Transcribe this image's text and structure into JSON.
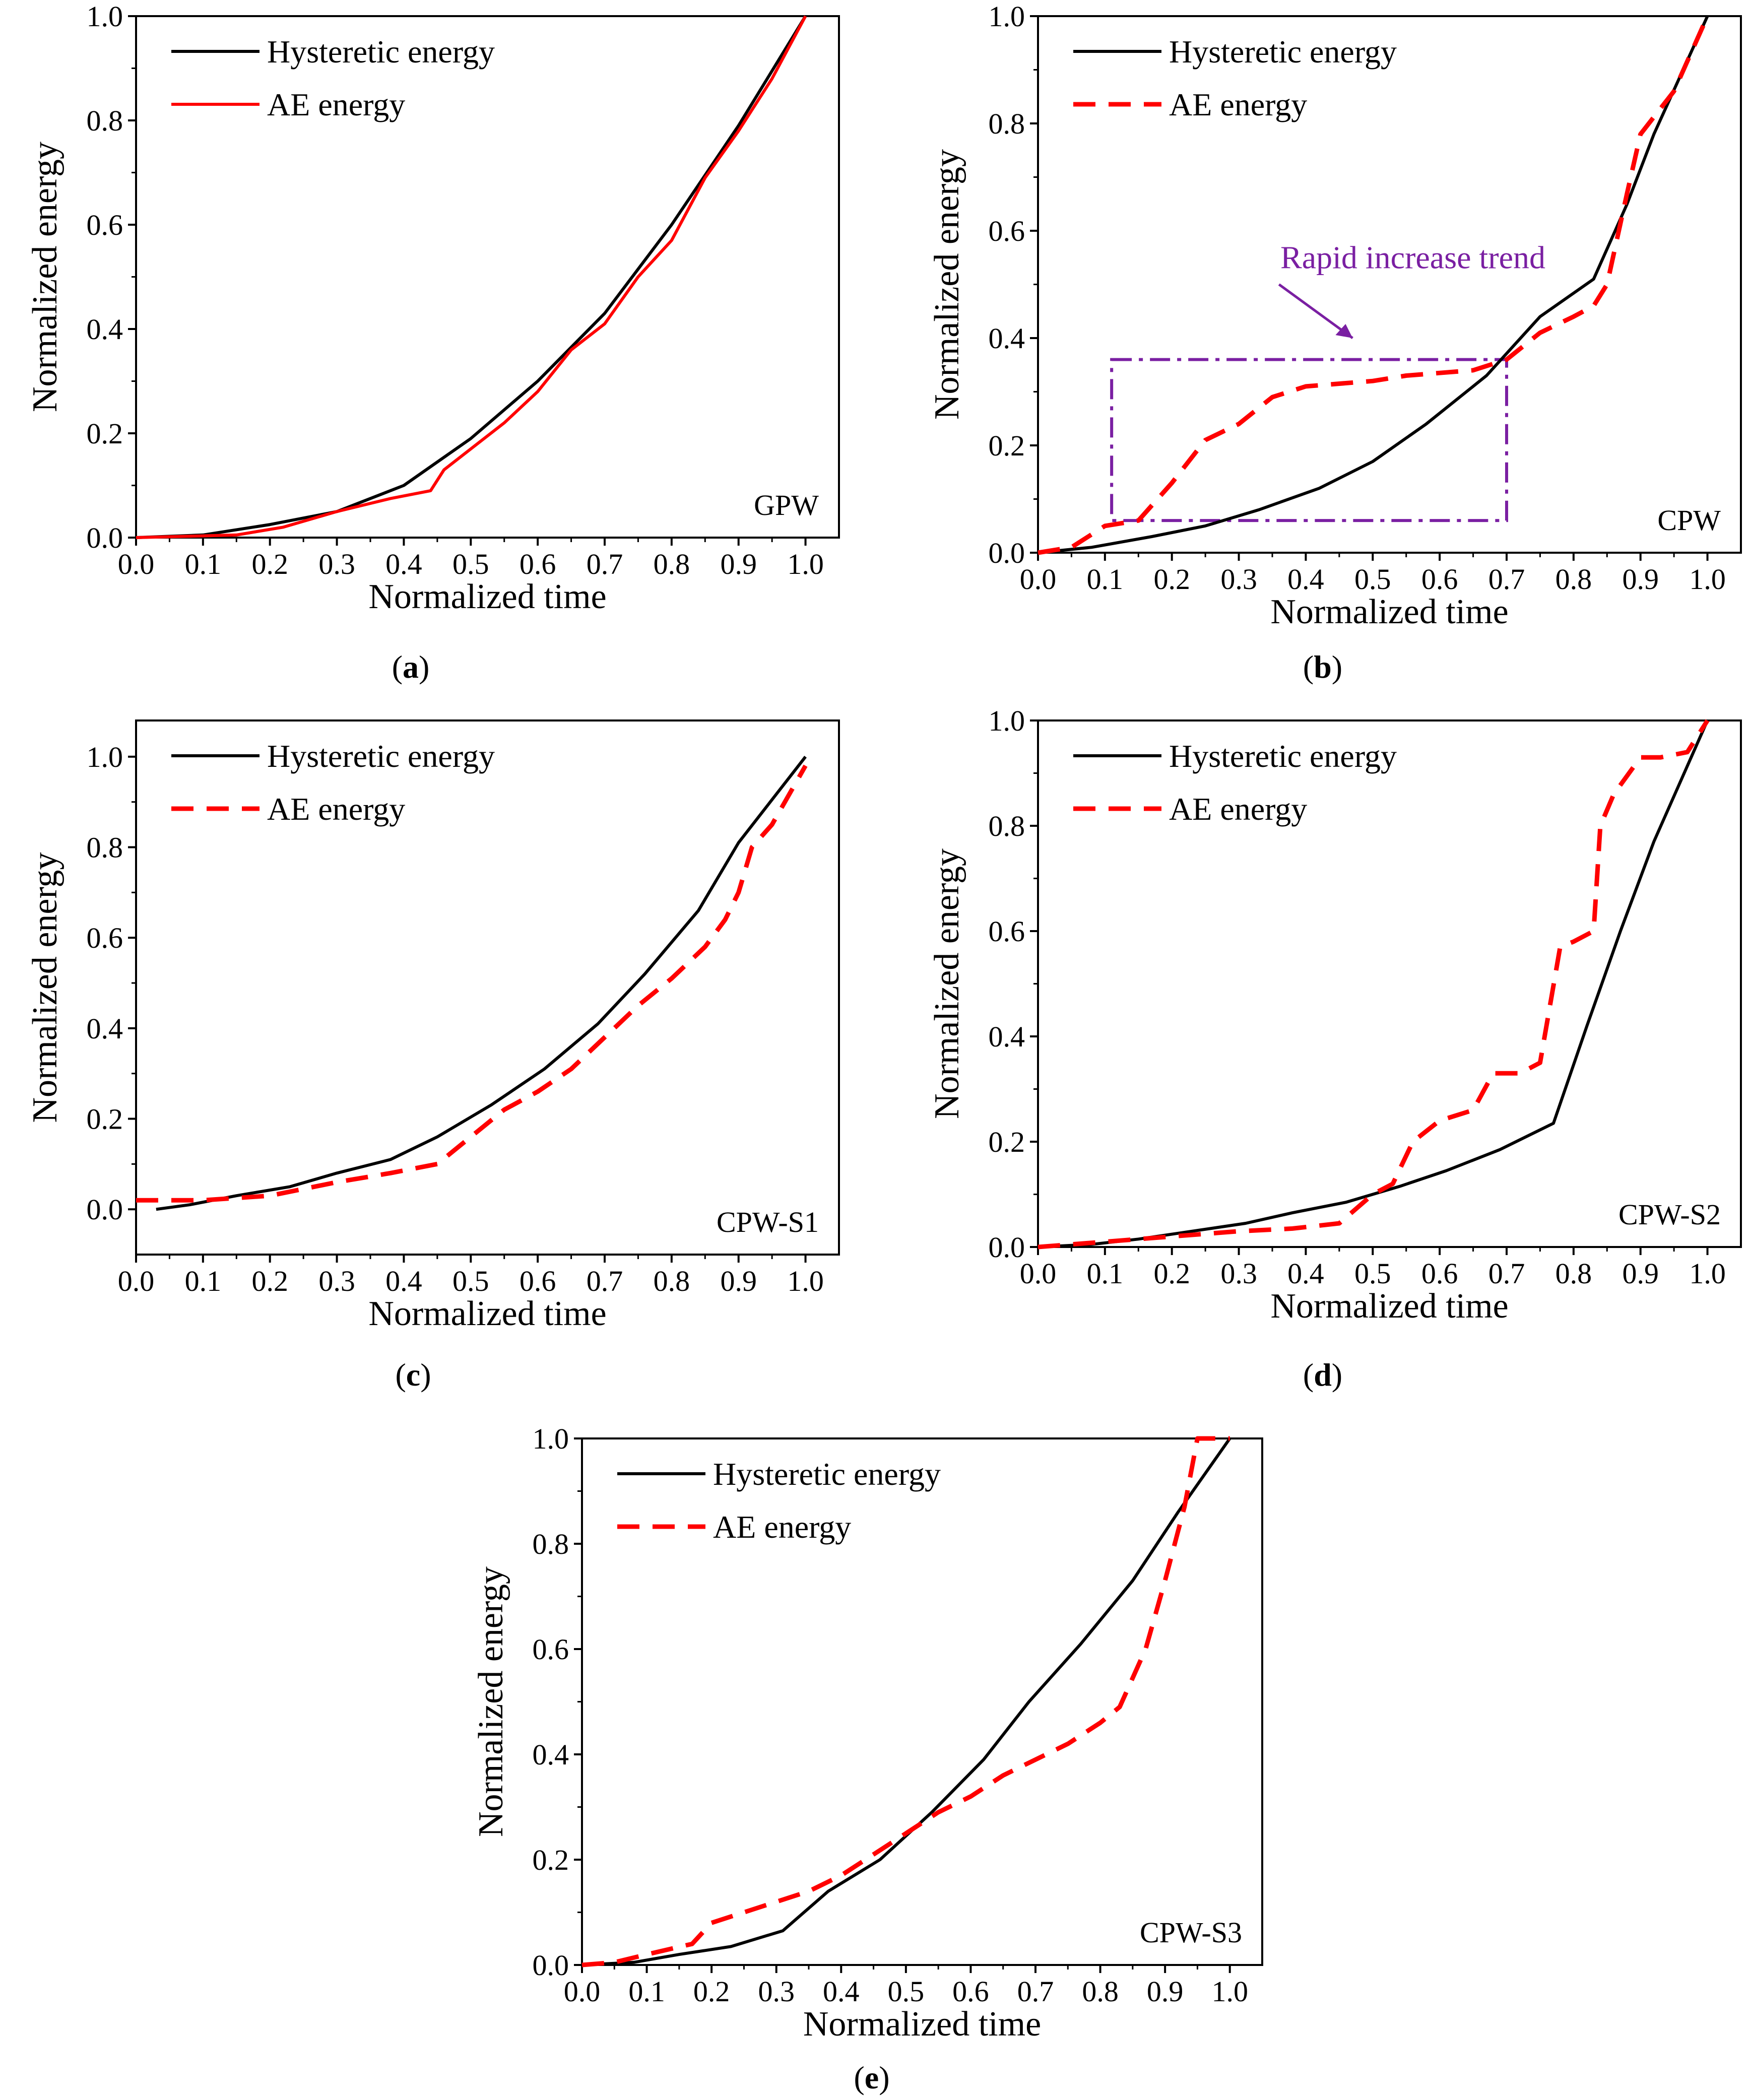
{
  "figure": {
    "charts": [
      {
        "id": "a",
        "caption_letter": "a",
        "tag": "GPW"
      },
      {
        "id": "b",
        "caption_letter": "b",
        "tag": "CPW"
      },
      {
        "id": "c",
        "caption_letter": "c",
        "tag": "CPW-S1"
      },
      {
        "id": "d",
        "caption_letter": "d",
        "tag": "CPW-S2"
      },
      {
        "id": "e",
        "caption_letter": "e",
        "tag": "CPW-S3"
      }
    ]
  },
  "colors": {
    "hysteretic": "#000000",
    "ae": "#ff0000",
    "annotation": "#7a1fa2"
  },
  "chart_data": [
    {
      "id": "a",
      "type": "line",
      "tag": "GPW",
      "xlabel": "Normalized time",
      "ylabel": "Normalized energy",
      "xlim": [
        0,
        1.05
      ],
      "ylim": [
        0,
        1.0
      ],
      "xticks": [
        "0.0",
        "0.1",
        "0.2",
        "0.3",
        "0.4",
        "0.5",
        "0.6",
        "0.7",
        "0.8",
        "0.9",
        "1.0"
      ],
      "yticks": [
        "0.0",
        "0.2",
        "0.4",
        "0.6",
        "0.8",
        "1.0"
      ],
      "legend": "top-left",
      "series": [
        {
          "name": "Hysteretic energy",
          "style": "solid",
          "color": "#000000",
          "x": [
            0,
            0.1,
            0.2,
            0.3,
            0.4,
            0.5,
            0.6,
            0.7,
            0.8,
            0.9,
            1.0
          ],
          "y": [
            0,
            0.005,
            0.025,
            0.05,
            0.1,
            0.19,
            0.3,
            0.43,
            0.6,
            0.79,
            1.0
          ]
        },
        {
          "name": "AE energy",
          "style": "solid",
          "color": "#ff0000",
          "x": [
            0,
            0.15,
            0.22,
            0.3,
            0.38,
            0.44,
            0.46,
            0.5,
            0.55,
            0.6,
            0.65,
            0.7,
            0.75,
            0.8,
            0.85,
            0.9,
            0.95,
            1.0
          ],
          "y": [
            0,
            0.005,
            0.02,
            0.05,
            0.075,
            0.09,
            0.13,
            0.17,
            0.22,
            0.28,
            0.36,
            0.41,
            0.5,
            0.57,
            0.69,
            0.78,
            0.88,
            1.0
          ]
        }
      ]
    },
    {
      "id": "b",
      "type": "line",
      "tag": "CPW",
      "xlabel": "Normalized time",
      "ylabel": "Normalized energy",
      "xlim": [
        0,
        1.05
      ],
      "ylim": [
        0,
        1.0
      ],
      "xticks": [
        "0.0",
        "0.1",
        "0.2",
        "0.3",
        "0.4",
        "0.5",
        "0.6",
        "0.7",
        "0.8",
        "0.9",
        "1.0"
      ],
      "yticks": [
        "0.0",
        "0.2",
        "0.4",
        "0.6",
        "0.8",
        "1.0"
      ],
      "legend": "top-left",
      "annotation": {
        "text": "Rapid increase trend",
        "box_x": [
          0.11,
          0.7
        ],
        "box_y": [
          0.06,
          0.36
        ]
      },
      "series": [
        {
          "name": "Hysteretic energy",
          "style": "solid",
          "color": "#000000",
          "x": [
            0,
            0.08,
            0.17,
            0.25,
            0.33,
            0.42,
            0.5,
            0.58,
            0.67,
            0.75,
            0.83,
            0.88,
            0.92,
            1.0
          ],
          "y": [
            0,
            0.01,
            0.03,
            0.05,
            0.08,
            0.12,
            0.17,
            0.24,
            0.33,
            0.44,
            0.51,
            0.65,
            0.78,
            1.0
          ]
        },
        {
          "name": "AE energy",
          "style": "dashed",
          "color": "#ff0000",
          "x": [
            0,
            0.05,
            0.1,
            0.15,
            0.2,
            0.25,
            0.3,
            0.35,
            0.4,
            0.45,
            0.5,
            0.55,
            0.6,
            0.65,
            0.7,
            0.75,
            0.8,
            0.83,
            0.85,
            0.88,
            0.9,
            0.95,
            1.0
          ],
          "y": [
            0,
            0.01,
            0.05,
            0.06,
            0.13,
            0.21,
            0.24,
            0.29,
            0.31,
            0.315,
            0.32,
            0.33,
            0.335,
            0.34,
            0.36,
            0.41,
            0.44,
            0.46,
            0.5,
            0.67,
            0.78,
            0.86,
            1.0
          ]
        }
      ]
    },
    {
      "id": "c",
      "type": "line",
      "tag": "CPW-S1",
      "xlabel": "Normalized time",
      "ylabel": "Normalized energy",
      "xlim": [
        0,
        1.05
      ],
      "ylim": [
        -0.1,
        1.08
      ],
      "xticks": [
        "0.0",
        "0.1",
        "0.2",
        "0.3",
        "0.4",
        "0.5",
        "0.6",
        "0.7",
        "0.8",
        "0.9",
        "1.0"
      ],
      "yticks": [
        "0.0",
        "0.2",
        "0.4",
        "0.6",
        "0.8",
        "1.0"
      ],
      "legend": "top-left",
      "series": [
        {
          "name": "Hysteretic energy",
          "style": "solid",
          "color": "#000000",
          "x": [
            0.03,
            0.08,
            0.15,
            0.23,
            0.3,
            0.38,
            0.45,
            0.53,
            0.61,
            0.69,
            0.76,
            0.84,
            0.9,
            1.0
          ],
          "y": [
            0,
            0.01,
            0.03,
            0.05,
            0.08,
            0.11,
            0.16,
            0.23,
            0.31,
            0.41,
            0.52,
            0.66,
            0.81,
            1.0
          ]
        },
        {
          "name": "AE energy",
          "style": "dashed",
          "color": "#ff0000",
          "x": [
            0,
            0.1,
            0.2,
            0.3,
            0.38,
            0.45,
            0.5,
            0.55,
            0.6,
            0.65,
            0.7,
            0.75,
            0.8,
            0.85,
            0.88,
            0.9,
            0.92,
            0.95,
            1.0
          ],
          "y": [
            0.02,
            0.02,
            0.03,
            0.06,
            0.08,
            0.1,
            0.16,
            0.22,
            0.26,
            0.31,
            0.38,
            0.45,
            0.51,
            0.58,
            0.64,
            0.7,
            0.8,
            0.85,
            0.98
          ]
        }
      ]
    },
    {
      "id": "d",
      "type": "line",
      "tag": "CPW-S2",
      "xlabel": "Normalized time",
      "ylabel": "Normalized energy",
      "xlim": [
        0,
        1.05
      ],
      "ylim": [
        0,
        1.0
      ],
      "xticks": [
        "0.0",
        "0.1",
        "0.2",
        "0.3",
        "0.4",
        "0.5",
        "0.6",
        "0.7",
        "0.8",
        "0.9",
        "1.0"
      ],
      "yticks": [
        "0.0",
        "0.2",
        "0.4",
        "0.6",
        "0.8",
        "1.0"
      ],
      "legend": "top-left",
      "series": [
        {
          "name": "Hysteretic energy",
          "style": "solid",
          "color": "#000000",
          "x": [
            0,
            0.08,
            0.15,
            0.23,
            0.31,
            0.38,
            0.46,
            0.54,
            0.61,
            0.69,
            0.77,
            0.82,
            0.87,
            0.92,
            1.0
          ],
          "y": [
            0,
            0.005,
            0.015,
            0.03,
            0.045,
            0.065,
            0.085,
            0.115,
            0.145,
            0.185,
            0.235,
            0.42,
            0.6,
            0.77,
            1.0
          ]
        },
        {
          "name": "AE energy",
          "style": "dashed",
          "color": "#ff0000",
          "x": [
            0,
            0.1,
            0.2,
            0.3,
            0.38,
            0.45,
            0.5,
            0.53,
            0.56,
            0.6,
            0.65,
            0.68,
            0.72,
            0.75,
            0.78,
            0.8,
            0.83,
            0.84,
            0.86,
            0.9,
            0.93,
            0.97,
            1.0
          ],
          "y": [
            0,
            0.01,
            0.02,
            0.03,
            0.035,
            0.045,
            0.1,
            0.12,
            0.2,
            0.24,
            0.26,
            0.33,
            0.33,
            0.35,
            0.57,
            0.58,
            0.6,
            0.8,
            0.86,
            0.93,
            0.93,
            0.94,
            1.0
          ]
        }
      ]
    },
    {
      "id": "e",
      "type": "line",
      "tag": "CPW-S3",
      "xlabel": "Normalized time",
      "ylabel": "Normalized energy",
      "xlim": [
        0,
        1.05
      ],
      "ylim": [
        0,
        1.0
      ],
      "xticks": [
        "0.0",
        "0.1",
        "0.2",
        "0.3",
        "0.4",
        "0.5",
        "0.6",
        "0.7",
        "0.8",
        "0.9",
        "1.0"
      ],
      "yticks": [
        "0.0",
        "0.2",
        "0.4",
        "0.6",
        "0.8",
        "1.0"
      ],
      "legend": "top-left",
      "series": [
        {
          "name": "Hysteretic energy",
          "style": "solid",
          "color": "#000000",
          "x": [
            0,
            0.08,
            0.15,
            0.23,
            0.31,
            0.38,
            0.46,
            0.54,
            0.62,
            0.69,
            0.77,
            0.85,
            0.92,
            1.0
          ],
          "y": [
            0,
            0.005,
            0.02,
            0.035,
            0.065,
            0.14,
            0.2,
            0.29,
            0.39,
            0.5,
            0.61,
            0.73,
            0.86,
            1.0
          ]
        },
        {
          "name": "AE energy",
          "style": "dashed",
          "color": "#ff0000",
          "x": [
            0,
            0.05,
            0.1,
            0.17,
            0.2,
            0.25,
            0.3,
            0.35,
            0.4,
            0.45,
            0.5,
            0.55,
            0.6,
            0.65,
            0.7,
            0.75,
            0.8,
            0.83,
            0.87,
            0.9,
            0.93,
            0.95,
            1.0
          ],
          "y": [
            0,
            0.005,
            0.02,
            0.04,
            0.08,
            0.1,
            0.12,
            0.14,
            0.17,
            0.21,
            0.25,
            0.29,
            0.32,
            0.36,
            0.39,
            0.42,
            0.46,
            0.49,
            0.6,
            0.73,
            0.87,
            1.0,
            1.0
          ]
        }
      ]
    }
  ]
}
